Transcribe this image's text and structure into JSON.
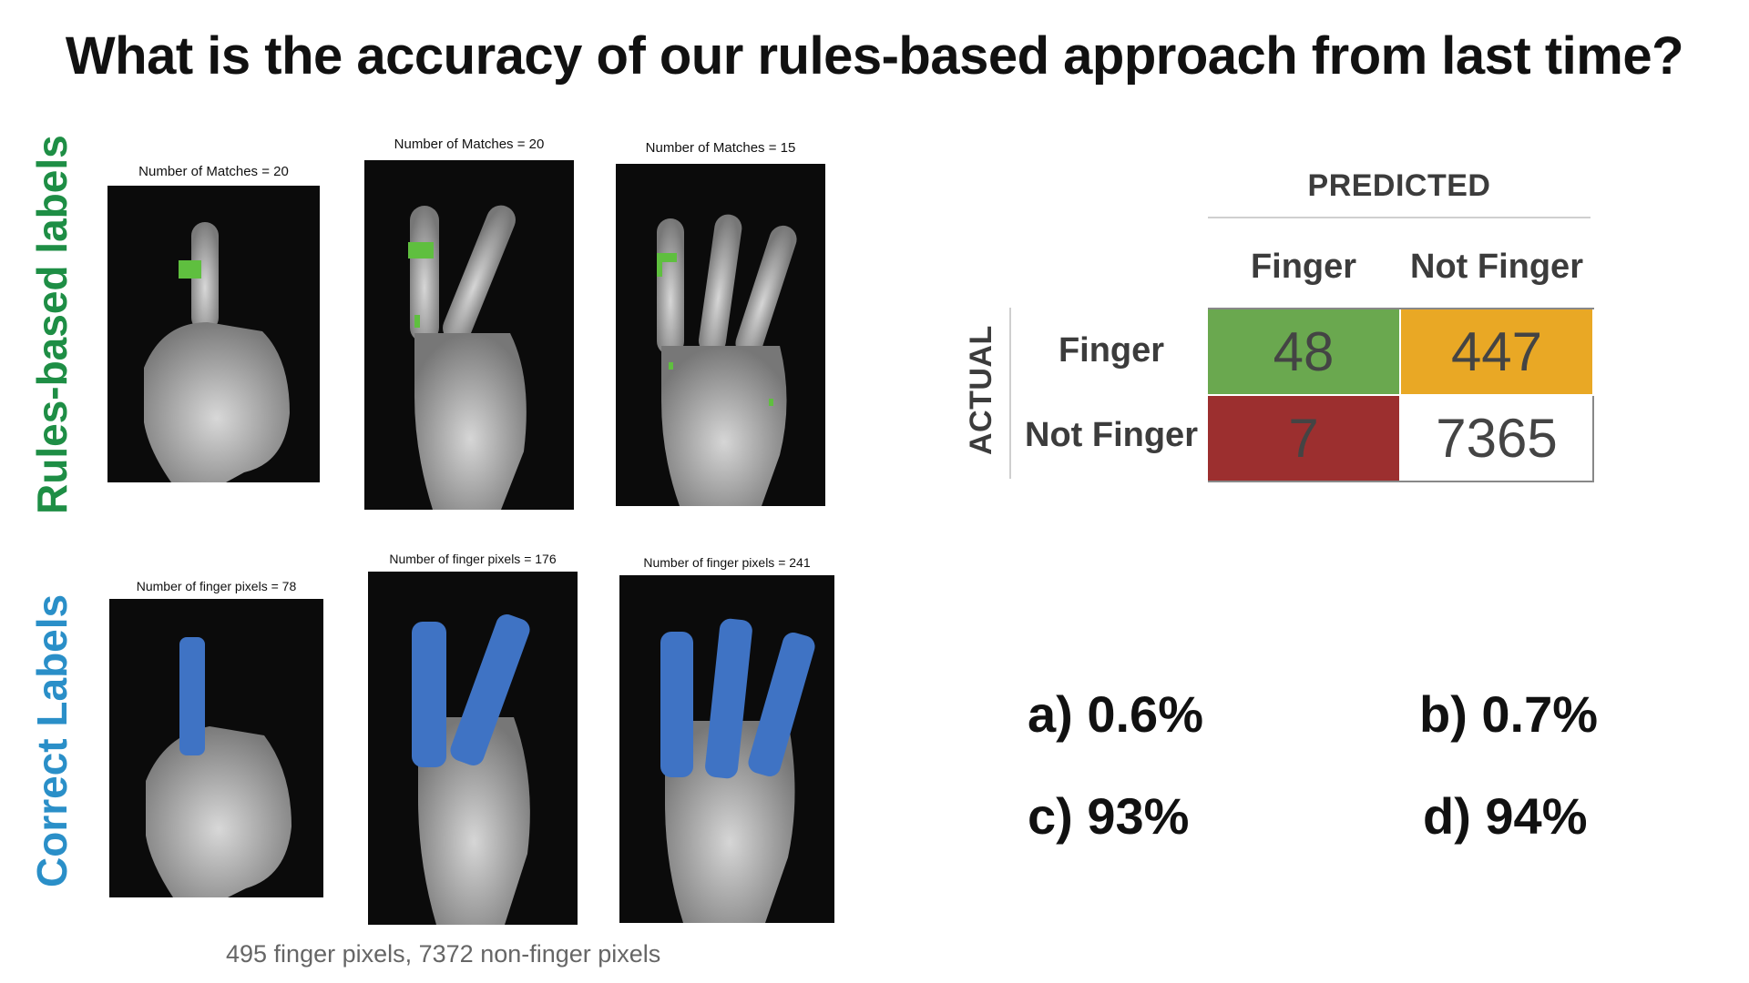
{
  "title": {
    "prefix": "What is the ",
    "emphasis": "accuracy",
    "suffix": " of our rules-based approach from last time?"
  },
  "side_labels": {
    "rules": "Rules-based labels",
    "correct": "Correct Labels"
  },
  "panels": {
    "rules": [
      {
        "caption": "Number of Matches = 20"
      },
      {
        "caption": "Number of Matches = 20"
      },
      {
        "caption": "Number of Matches = 15"
      }
    ],
    "correct": [
      {
        "caption": "Number of finger pixels = 78"
      },
      {
        "caption": "Number of finger pixels = 176"
      },
      {
        "caption": "Number of finger pixels = 241"
      }
    ]
  },
  "footnote": "495 finger pixels, 7372 non-finger pixels",
  "confusion_matrix": {
    "predicted_title": "PREDICTED",
    "actual_title": "ACTUAL",
    "col_headers": [
      "Finger",
      "Not Finger"
    ],
    "row_headers": [
      "Finger",
      "Not Finger"
    ],
    "cells": [
      {
        "value": "48",
        "color": "#6aa84f"
      },
      {
        "value": "447",
        "color": "#e9a825"
      },
      {
        "value": "7",
        "color": "#9c2f2f"
      },
      {
        "value": "7365",
        "color": "#ffffff"
      }
    ]
  },
  "answers": {
    "a": "a) 0.6%",
    "b": "b) 0.7%",
    "c": "c) 93%",
    "d": "d) 94%"
  },
  "colors": {
    "rules_label": "#1e8e45",
    "correct_label": "#2a8fc8",
    "match_marker": "#5fbf3f",
    "finger_overlay": "#3f73c4"
  }
}
